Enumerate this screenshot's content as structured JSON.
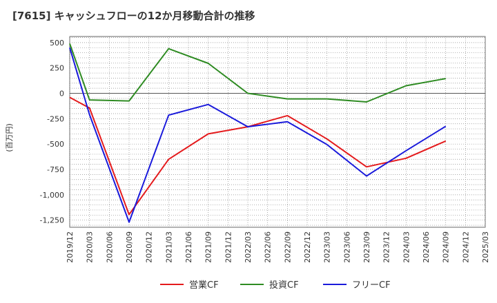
{
  "chart_data": {
    "type": "line",
    "title": "[7615]  キャッシュフローの12か月移動合計の推移",
    "xlabel": "",
    "ylabel": "(百万円)",
    "ylim": [
      -1320,
      560
    ],
    "yticks": [
      500,
      250,
      0,
      -250,
      -500,
      -750,
      -1000,
      -1250
    ],
    "ytick_labels": [
      "500",
      "250",
      "0",
      "-250",
      "-500",
      "-750",
      "-1,000",
      "-1,250"
    ],
    "categories": [
      "2019/12",
      "2020/03",
      "2020/06",
      "2020/09",
      "2020/12",
      "2021/03",
      "2021/06",
      "2021/09",
      "2021/12",
      "2022/03",
      "2022/06",
      "2022/09",
      "2022/12",
      "2023/03",
      "2023/06",
      "2023/09",
      "2023/12",
      "2024/03",
      "2024/06",
      "2024/09",
      "2024/12",
      "2025/03"
    ],
    "grid": true,
    "legend_position": "bottom",
    "series": [
      {
        "name": "営業CF",
        "color": "#e41a1c",
        "values": [
          -40,
          -145,
          null,
          -1195,
          null,
          -650,
          null,
          -400,
          null,
          -330,
          null,
          -220,
          null,
          -450,
          null,
          -725,
          null,
          -640,
          null,
          -470,
          null,
          null
        ]
      },
      {
        "name": "投資CF",
        "color": "#2e8b22",
        "values": [
          490,
          -65,
          null,
          -75,
          null,
          440,
          null,
          295,
          null,
          0,
          null,
          -55,
          null,
          -55,
          null,
          -85,
          null,
          75,
          null,
          145,
          null,
          null
        ]
      },
      {
        "name": "フリーCF",
        "color": "#1a1adb",
        "values": [
          450,
          -210,
          null,
          -1270,
          null,
          -215,
          null,
          -110,
          null,
          -330,
          null,
          -280,
          null,
          -505,
          null,
          -815,
          null,
          -565,
          null,
          -325,
          null,
          null
        ]
      }
    ]
  }
}
